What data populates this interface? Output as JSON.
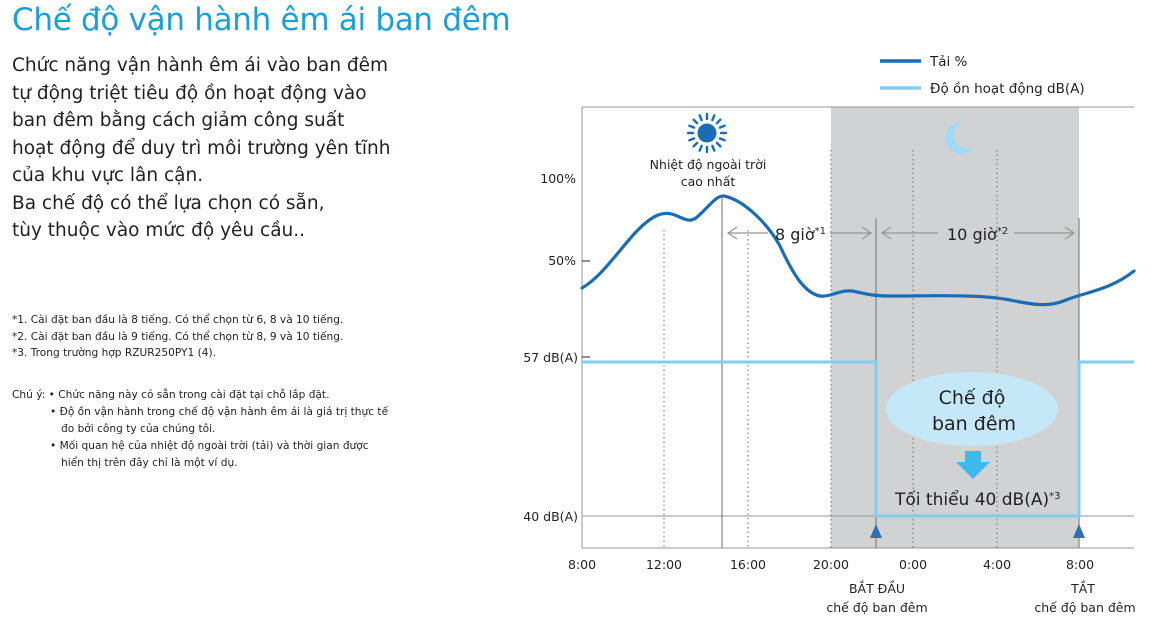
{
  "title": "Chế độ vận hành êm ái ban đêm",
  "intro_lines": [
    "Chức năng vận hành êm ái vào ban đêm",
    "tự động triệt tiêu độ ồn hoạt động vào",
    "ban đêm bằng cách giảm công suất",
    "hoạt động để duy trì môi trường yên tĩnh",
    "của khu vực lân cận.",
    "Ba chế độ có thể lựa chọn có sẵn,",
    "tùy thuộc vào mức độ yêu cầu.."
  ],
  "footnotes": [
    "*1. Cài đặt ban đầu là 8 tiếng. Có thể chọn từ 6, 8 và 10 tiếng.",
    "*2. Cài đặt ban đầu là 9 tiếng. Có thể chọn từ 8, 9 và 10 tiếng.",
    "*3. Trong trường hợp RZUR250PY1 (4)."
  ],
  "caution": {
    "label": "Chú ý:",
    "items": [
      "• Chức năng này có sẵn trong cài đặt tại chỗ lắp đặt.",
      "• Độ ồn vận hành trong chế độ vận hành êm ái là giá trị thực tế",
      "đo bởi công ty của chúng tôi.",
      "• Mối quan hệ của nhiệt độ ngoài trời (tải) và thời gian được",
      "hiển thị trên đây chỉ là một ví dụ."
    ]
  },
  "chart": {
    "legend": {
      "load": "Tải %",
      "noise": "Độ ồn hoạt động dB(A)"
    },
    "y_load_labels": [
      "100%",
      "50%"
    ],
    "y_noise_labels": [
      "57 dB(A)",
      "40 dB(A)"
    ],
    "x_labels": [
      "8:00",
      "12:00",
      "16:00",
      "20:00",
      "0:00",
      "4:00",
      "8:00"
    ],
    "peak_label": [
      "Nhiệt độ ngoài trời",
      "cao nhất"
    ],
    "duration_1": {
      "text": "8 giờ",
      "sup": "*1"
    },
    "duration_2": {
      "text": "10 giờ",
      "sup": "*2"
    },
    "night_mode_label": [
      "Chế độ",
      "ban đêm"
    ],
    "min_label": {
      "text": "Tối thiểu 40 dB(A)",
      "sup": "*3"
    },
    "start_label": [
      "BẮT ĐẦU",
      "chế độ ban đêm"
    ],
    "end_label": [
      "TẮT",
      "chế độ ban đêm"
    ],
    "colors": {
      "title": "#1a9fd9",
      "load_line": "#1a6db4",
      "noise_line": "#7fcdf0",
      "night_band": "#d1d2d4",
      "bubble": "#c5e8f8",
      "arrow": "#3fb8ee",
      "marker": "#2f6fb3"
    }
  }
}
